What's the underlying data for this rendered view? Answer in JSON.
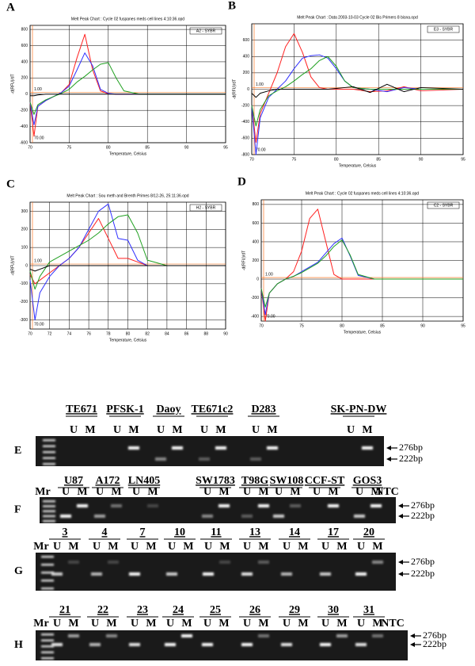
{
  "chart_data": [
    {
      "type": "line",
      "panel": "A",
      "title": "Melt Peak Chart : Cycle 02 fuspanes meds cell lines 4:10:36.opd",
      "legend_text": "A2 - SYBR",
      "xlabel": "Temperature, Celsius",
      "ylabel": "-d(RFU)/dT",
      "threshold_label": "1.00",
      "start_label": "70.00",
      "x": [
        70,
        70.5,
        71,
        72,
        73,
        74,
        75,
        76,
        77,
        78,
        79,
        80,
        81,
        82,
        84,
        86,
        88,
        90,
        95
      ],
      "xlim": [
        70,
        95
      ],
      "xticks": [
        70,
        75,
        80,
        85,
        90,
        95
      ],
      "ylim": [
        -600,
        850
      ],
      "yticks": [
        -600,
        -400,
        -200,
        0,
        200,
        400,
        600,
        800
      ],
      "grid": true,
      "series": [
        {
          "color": "#ff2020",
          "values": [
            -100,
            -520,
            -150,
            -80,
            -30,
            20,
            120,
            450,
            740,
            300,
            40,
            5,
            0,
            0,
            0,
            0,
            0,
            0,
            0
          ]
        },
        {
          "color": "#3030ff",
          "values": [
            -100,
            -380,
            -150,
            -80,
            -30,
            20,
            100,
            300,
            510,
            350,
            60,
            10,
            0,
            0,
            0,
            0,
            0,
            0,
            0
          ]
        },
        {
          "color": "#20a020",
          "values": [
            -100,
            -250,
            -130,
            -70,
            -30,
            10,
            60,
            150,
            220,
            300,
            370,
            390,
            200,
            40,
            0,
            0,
            0,
            0,
            0
          ]
        },
        {
          "color": "#000000",
          "values": [
            -20,
            -20,
            -10,
            0,
            0,
            0,
            0,
            0,
            0,
            0,
            0,
            0,
            0,
            0,
            0,
            0,
            0,
            0,
            0
          ]
        }
      ]
    },
    {
      "type": "line",
      "panel": "B",
      "title": "Melt Peak Chart : Data 2003-10-03 Cycle 02 Bis Primers 8 bisna.opd",
      "legend_text": "E3 - SYBR",
      "xlabel": "Temperature, Celsius",
      "ylabel": "-d(RFU)/dT",
      "threshold_label": "1.00",
      "start_label": "70.00",
      "x": [
        70,
        70.5,
        71,
        72,
        73,
        74,
        75,
        76,
        77,
        78,
        79,
        80,
        81,
        82,
        84,
        86,
        88,
        90,
        95
      ],
      "xlim": [
        70,
        95
      ],
      "xticks": [
        70,
        75,
        80,
        85,
        90,
        95
      ],
      "ylim": [
        -800,
        800
      ],
      "yticks": [
        -800,
        -600,
        -400,
        -200,
        0,
        200,
        400,
        600
      ],
      "grid": true,
      "series": [
        {
          "color": "#ff2020",
          "values": [
            -200,
            -650,
            -300,
            -50,
            200,
            520,
            680,
            450,
            150,
            20,
            0,
            0,
            0,
            0,
            -30,
            -20,
            30,
            -20,
            0
          ]
        },
        {
          "color": "#3030ff",
          "values": [
            -200,
            -800,
            -350,
            -100,
            0,
            100,
            250,
            380,
            410,
            420,
            380,
            250,
            100,
            20,
            0,
            -30,
            20,
            0,
            0
          ]
        },
        {
          "color": "#20a020",
          "values": [
            -200,
            -450,
            -250,
            -80,
            -20,
            30,
            100,
            180,
            250,
            350,
            400,
            280,
            100,
            20,
            0,
            0,
            0,
            0,
            0
          ]
        },
        {
          "color": "#000000",
          "values": [
            -50,
            -100,
            -50,
            -20,
            0,
            0,
            0,
            0,
            0,
            0,
            0,
            10,
            20,
            30,
            -40,
            60,
            -30,
            20,
            0
          ]
        }
      ]
    },
    {
      "type": "line",
      "panel": "C",
      "title": "Melt Peak Chart : Sou meth and Brenth Primes 8/12-26, 25:11:36.opd",
      "legend_text": "H2 - SYBR",
      "xlabel": "Temperature, Celsius",
      "ylabel": "-d(RFU)/dT",
      "threshold_label": "1.00",
      "start_label": "70.00",
      "x": [
        70,
        70.5,
        71,
        72,
        73,
        74,
        75,
        76,
        77,
        78,
        79,
        80,
        81,
        82,
        84,
        86,
        88,
        90
      ],
      "xlim": [
        70,
        90
      ],
      "xticks": [
        70,
        72,
        74,
        76,
        78,
        80,
        82,
        84,
        86,
        88,
        90
      ],
      "ylim": [
        -350,
        350
      ],
      "yticks": [
        -300,
        -200,
        -100,
        0,
        100,
        200,
        300
      ],
      "grid": true,
      "series": [
        {
          "color": "#ff2020",
          "values": [
            -50,
            -100,
            -80,
            -40,
            0,
            40,
            100,
            180,
            260,
            150,
            40,
            40,
            20,
            0,
            0,
            0,
            0,
            0
          ]
        },
        {
          "color": "#3030ff",
          "values": [
            -80,
            -300,
            -150,
            -60,
            0,
            40,
            100,
            200,
            300,
            340,
            150,
            140,
            30,
            0,
            0,
            0,
            0,
            0
          ]
        },
        {
          "color": "#20a020",
          "values": [
            -30,
            -130,
            -60,
            20,
            50,
            80,
            110,
            140,
            180,
            230,
            270,
            280,
            180,
            30,
            0,
            0,
            0,
            0
          ]
        },
        {
          "color": "#000000",
          "values": [
            -20,
            -30,
            -20,
            0,
            0,
            0,
            0,
            0,
            0,
            0,
            0,
            0,
            0,
            0,
            0,
            0,
            0,
            0
          ]
        }
      ]
    },
    {
      "type": "line",
      "panel": "D",
      "title": "Melt Peak Chart : Cycle 02 fuspanes meds cell lines 4:10:36.opd",
      "legend_text": "C2 - SYBR",
      "xlabel": "Temperature, Celsius",
      "ylabel": "-d(RFU)/dT",
      "threshold_label": "1.00",
      "start_label": "70.00",
      "x": [
        70,
        70.5,
        71,
        72,
        73,
        74,
        75,
        76,
        77,
        78,
        79,
        80,
        81,
        82,
        84,
        86,
        88,
        90,
        95
      ],
      "xlim": [
        70,
        95
      ],
      "xticks": [
        70,
        75,
        80,
        85,
        90,
        95
      ],
      "ylim": [
        -450,
        850
      ],
      "yticks": [
        -400,
        -200,
        0,
        200,
        400,
        600,
        800
      ],
      "grid": true,
      "series": [
        {
          "color": "#ff2020",
          "values": [
            -100,
            -450,
            -150,
            -50,
            0,
            80,
            300,
            650,
            750,
            400,
            50,
            0,
            0,
            0,
            0,
            0,
            0,
            0,
            0
          ]
        },
        {
          "color": "#3030ff",
          "values": [
            -100,
            -380,
            -150,
            -50,
            0,
            30,
            80,
            130,
            180,
            280,
            380,
            440,
            250,
            40,
            0,
            0,
            0,
            0,
            0
          ]
        },
        {
          "color": "#20a020",
          "values": [
            -100,
            -300,
            -150,
            -50,
            0,
            30,
            70,
            120,
            170,
            250,
            350,
            420,
            260,
            50,
            0,
            0,
            0,
            0,
            0
          ]
        }
      ]
    }
  ],
  "gels": [
    {
      "letter": "E",
      "samples": [
        "TE671",
        "PFSK-1",
        "Daoy",
        "TE671c2",
        "D283",
        "SK-PN-DW"
      ],
      "lanes": [
        "U",
        "M"
      ],
      "sizes": [
        "276bp",
        "222bp"
      ]
    },
    {
      "letter": "F",
      "marker": "Mr",
      "samples": [
        "U87",
        "A172",
        "LN405",
        "SW1783",
        "T98G",
        "SW108",
        "CCF-ST",
        "GOS3"
      ],
      "lanes": [
        "U",
        "M"
      ],
      "control": "NTC",
      "sizes": [
        "276bp",
        "222bp"
      ]
    },
    {
      "letter": "G",
      "marker": "Mr",
      "samples": [
        "3",
        "4",
        "7",
        "10",
        "11",
        "13",
        "14",
        "17",
        "20"
      ],
      "lanes": [
        "U",
        "M"
      ],
      "sizes": [
        "276bp",
        "222bp"
      ]
    },
    {
      "letter": "H",
      "marker": "Mr",
      "samples": [
        "21",
        "22",
        "23",
        "24",
        "25",
        "26",
        "29",
        "30",
        "31"
      ],
      "lanes": [
        "U",
        "M"
      ],
      "control": "NTC",
      "sizes": [
        "276bp",
        "222bp"
      ]
    }
  ]
}
